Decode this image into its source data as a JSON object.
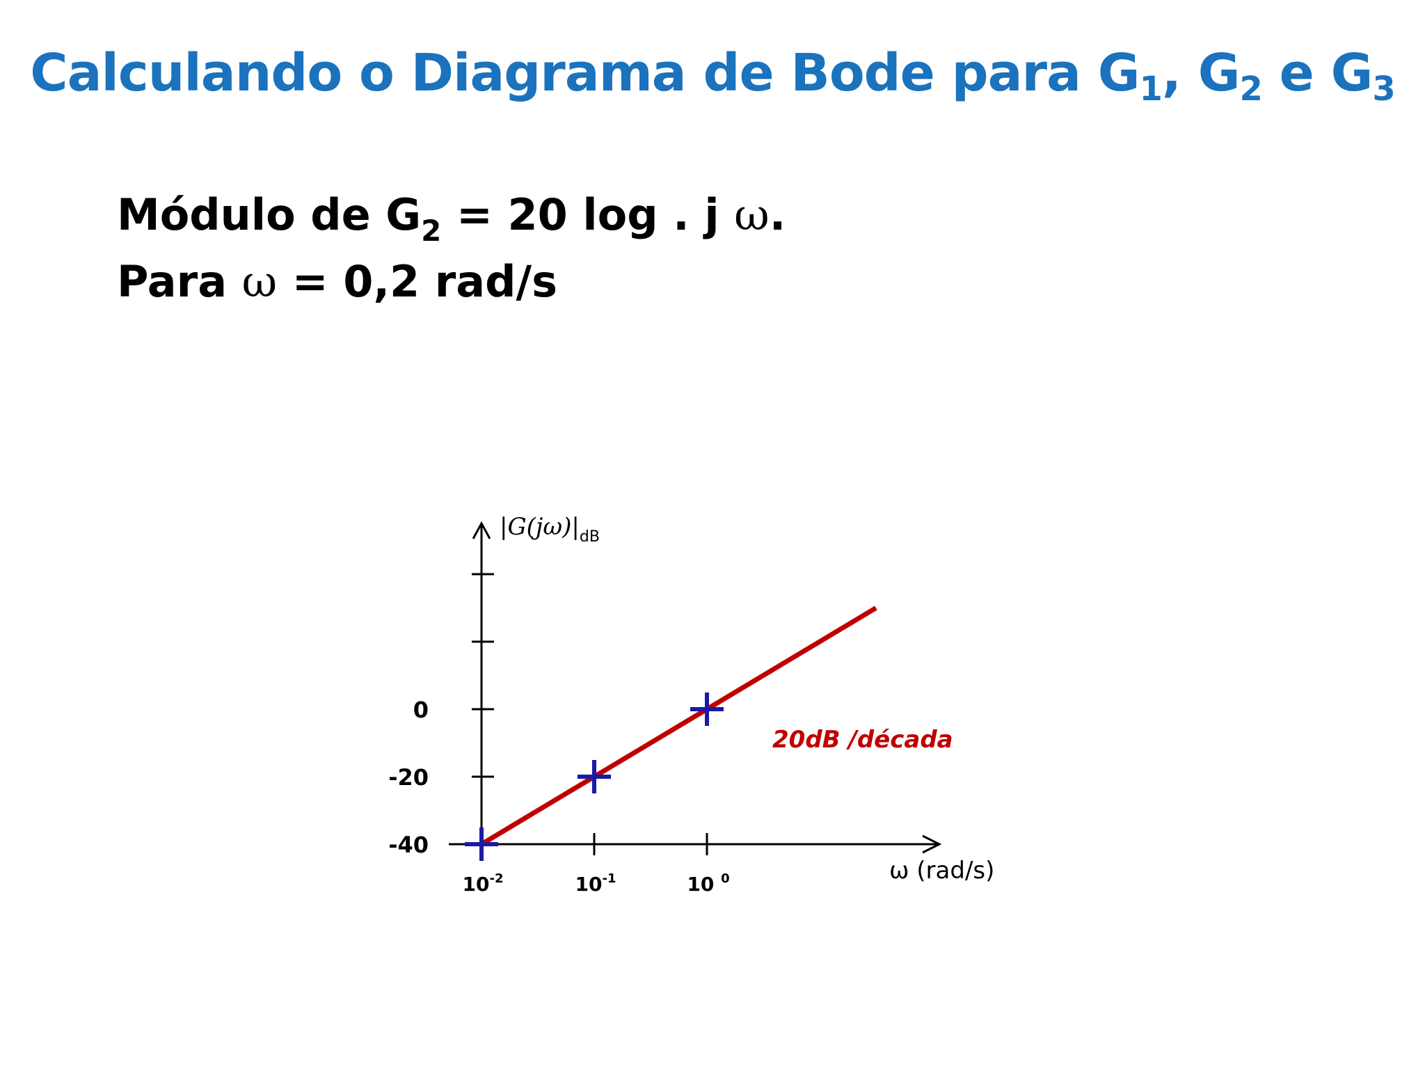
{
  "slide": {
    "title_main": "Calculando o Diagrama de Bode para G",
    "title_sub1": "1",
    "title_sep1": ", G",
    "title_sub2": "2",
    "title_sep2": " e G",
    "title_sub3": "3",
    "line1_prefix": "Módulo de G",
    "line1_sub": "2",
    "line1_mid": " = 20 log . j ",
    "line1_symbol": "ω",
    "line1_end": ".",
    "line2_prefix": "Para ",
    "line2_symbol": "ω",
    "line2_rest": " = 0,2 rad/s"
  },
  "colors": {
    "title": "#1b72bd",
    "asymptote": "#c00000",
    "markers": "#1a1aa6",
    "axes": "#000000"
  },
  "chart_data": {
    "type": "line",
    "title": "",
    "ylabel_main": "|G(jω)|",
    "ylabel_sub": "dB",
    "xlabel": "ω (rad/s)",
    "x_scale": "log",
    "x_ticks": [
      {
        "value": 0.01,
        "base": "10",
        "exp": "-2"
      },
      {
        "value": 0.1,
        "base": "10",
        "exp": "-1"
      },
      {
        "value": 1,
        "base": "10 ",
        "exp": "0"
      }
    ],
    "y_ticks": [
      {
        "value": -40,
        "label": "-40"
      },
      {
        "value": -20,
        "label": "-20"
      },
      {
        "value": 0,
        "label": "0"
      },
      {
        "value": 20,
        "label": ""
      },
      {
        "value": 40,
        "label": ""
      }
    ],
    "series": [
      {
        "x": [
          0.01,
          100
        ],
        "y": [
          -40,
          40
        ]
      }
    ],
    "markers": [
      {
        "x": 0.01,
        "y": -40
      },
      {
        "x": 0.1,
        "y": -20
      },
      {
        "x": 1,
        "y": 0
      }
    ],
    "annotation": "20dB /década",
    "grid": false
  }
}
